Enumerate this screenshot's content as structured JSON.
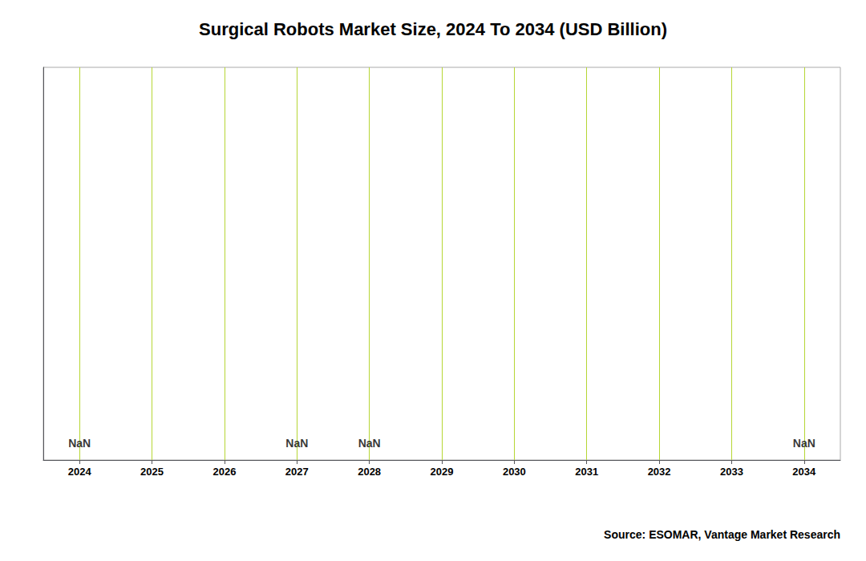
{
  "chart_data": {
    "type": "bar",
    "title": "Surgical Robots Market Size, 2024 To 2034 (USD Billion)",
    "categories": [
      "2024",
      "2025",
      "2026",
      "2027",
      "2028",
      "2029",
      "2030",
      "2031",
      "2032",
      "2033",
      "2034"
    ],
    "values": [
      null,
      null,
      null,
      null,
      null,
      null,
      null,
      null,
      null,
      null,
      null
    ],
    "annotations": [
      {
        "x": "2024",
        "text": "NaN"
      },
      {
        "x": "2027",
        "text": "NaN"
      },
      {
        "x": "2028",
        "text": "NaN"
      },
      {
        "x": "2034",
        "text": "NaN"
      }
    ],
    "source": "Source: ESOMAR, Vantage Market Research",
    "ylim": [
      0,
      1
    ],
    "grid": true,
    "tick_labels": "x"
  }
}
